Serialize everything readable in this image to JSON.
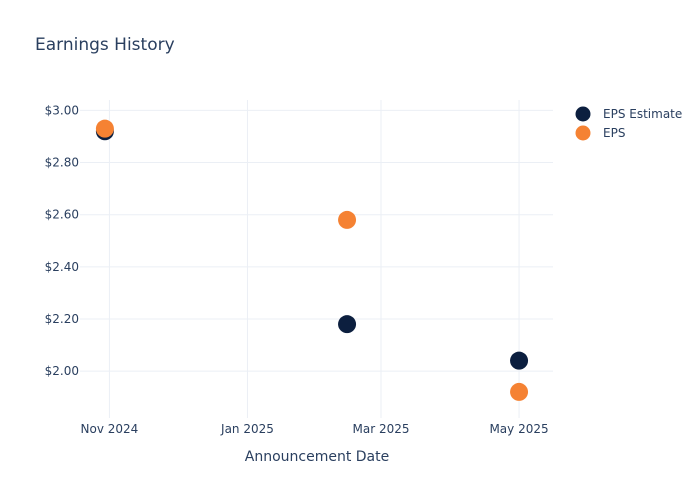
{
  "chart_data": {
    "type": "scatter",
    "title": "Earnings History",
    "xlabel": "Announcement Date",
    "ylabel": "",
    "x_ticks": [
      "Nov 2024",
      "Jan 2025",
      "Mar 2025",
      "May 2025"
    ],
    "x_tick_dates": [
      "2024-11-01",
      "2025-01-01",
      "2025-03-01",
      "2025-05-01"
    ],
    "xlim": [
      "2024-10-19",
      "2025-05-16"
    ],
    "y_ticks": [
      2.0,
      2.2,
      2.4,
      2.6,
      2.8,
      3.0
    ],
    "y_tick_labels": [
      "$2.00",
      "$2.20",
      "$2.40",
      "$2.60",
      "$2.80",
      "$3.00"
    ],
    "ylim": [
      1.82,
      3.04
    ],
    "grid": true,
    "legend_position": "top-right",
    "series": [
      {
        "name": "EPS Estimate",
        "color": "#0c1f3f",
        "x": [
          "2024-10-30",
          "2025-02-14",
          "2025-05-01"
        ],
        "y": [
          2.92,
          2.18,
          2.04
        ]
      },
      {
        "name": "EPS",
        "color": "#f58233",
        "x": [
          "2024-10-30",
          "2025-02-14",
          "2025-05-01"
        ],
        "y": [
          2.93,
          2.58,
          1.92
        ]
      }
    ]
  }
}
